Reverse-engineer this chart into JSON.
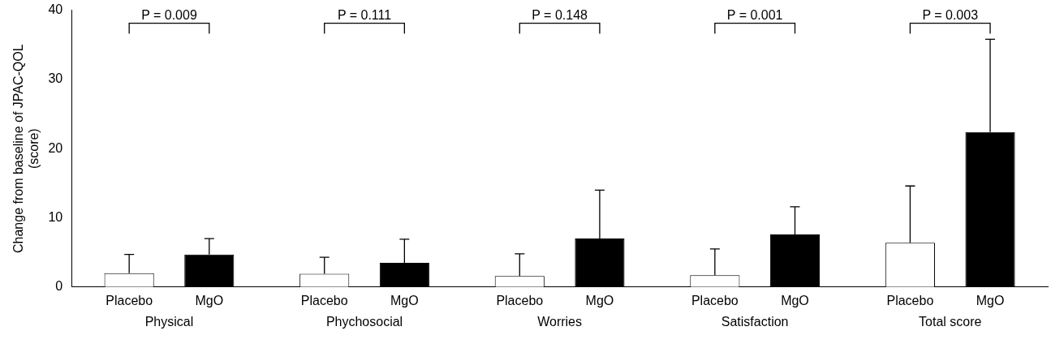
{
  "chart_data": {
    "type": "bar",
    "ylabel": "Change from baseline of JPAC-QOL\n(score)",
    "categories": [
      "Physical",
      "Phychosocial",
      "Worries",
      "Satisfaction",
      "Total score"
    ],
    "series": [
      {
        "name": "Placebo",
        "color": "#ffffff",
        "values": [
          2.0,
          1.9,
          1.6,
          1.7,
          6.4
        ],
        "errors": [
          [
            2.0,
            4.7
          ],
          [
            1.9,
            4.3
          ],
          [
            1.6,
            4.8
          ],
          [
            1.7,
            5.5
          ],
          [
            6.4,
            14.6
          ]
        ]
      },
      {
        "name": "MgO",
        "color": "#000000",
        "values": [
          4.7,
          3.5,
          7.0,
          7.6,
          22.4
        ],
        "errors": [
          [
            4.7,
            7.0
          ],
          [
            3.5,
            6.9
          ],
          [
            7.0,
            14.0
          ],
          [
            7.6,
            11.6
          ],
          [
            22.4,
            35.8
          ]
        ]
      }
    ],
    "annotations": [
      "P = 0.009",
      "P = 0.111",
      "P = 0.148",
      "P = 0.001",
      "P = 0.003"
    ],
    "ylim": [
      0,
      40
    ],
    "yticks": [
      0,
      10,
      20,
      30,
      40
    ],
    "grid": false,
    "legend": false
  }
}
